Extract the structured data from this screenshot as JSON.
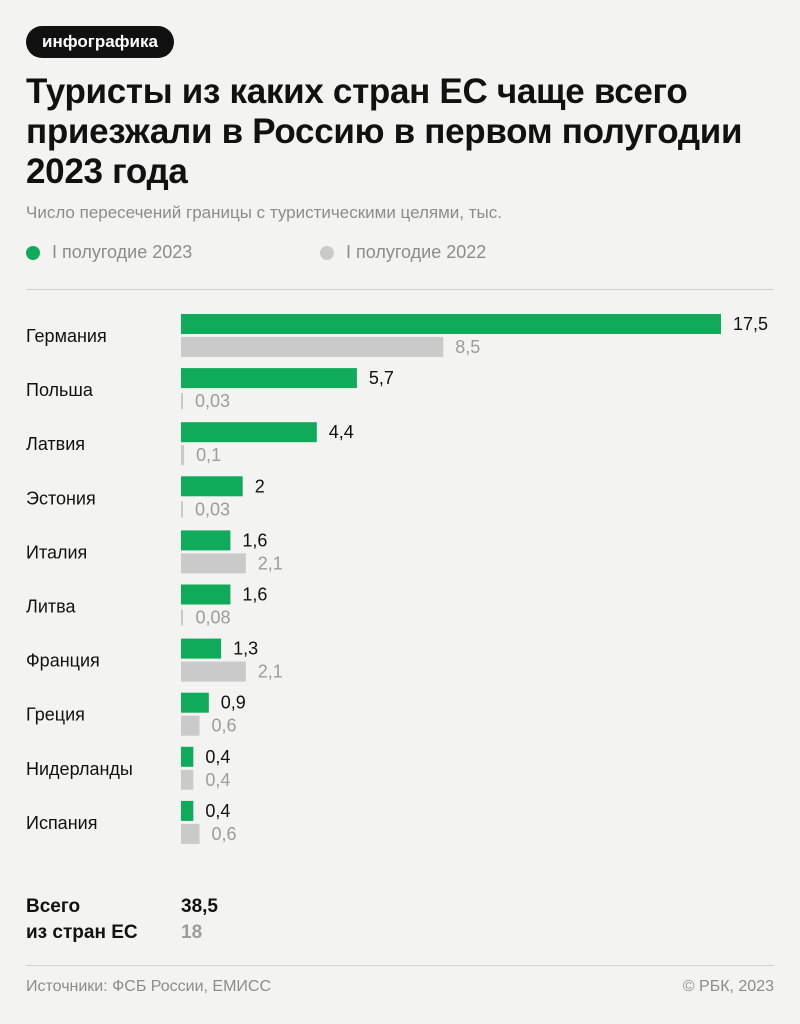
{
  "tag": "инфографика",
  "title": "Туристы из каких стран ЕС чаще всего приезжали в Россию в первом полугодии 2023 года",
  "chart_data": {
    "type": "bar",
    "orientation": "horizontal",
    "subtitle": "Число пересечений границы с туристическими целями, тыс.",
    "categories": [
      "Германия",
      "Польша",
      "Латвия",
      "Эстония",
      "Италия",
      "Литва",
      "Франция",
      "Греция",
      "Нидерланды",
      "Испания"
    ],
    "series": [
      {
        "name": "I полугодие 2023",
        "color": "#0faa5a",
        "values": [
          17.5,
          5.7,
          4.4,
          2,
          1.6,
          1.6,
          1.3,
          0.9,
          0.4,
          0.4
        ],
        "labels": [
          "17,5",
          "5,7",
          "4,4",
          "2",
          "1,6",
          "1,6",
          "1,3",
          "0,9",
          "0,4",
          "0,4"
        ]
      },
      {
        "name": "I полугодие 2022",
        "color": "#cacaca",
        "values": [
          8.5,
          0.03,
          0.1,
          0.03,
          2.1,
          0.08,
          2.1,
          0.6,
          0.4,
          0.6
        ],
        "labels": [
          "8,5",
          "0,03",
          "0,1",
          "0,03",
          "2,1",
          "0,08",
          "2,1",
          "0,6",
          "0,4",
          "0,6"
        ]
      }
    ],
    "xlim": [
      0,
      17.5
    ],
    "legend": "top-left"
  },
  "totals": {
    "label_line1": "Всего",
    "label_line2": "из стран ЕС",
    "value_2023": "38,5",
    "value_2022": "18"
  },
  "footer": {
    "source": "Источники: ФСБ России, ЕМИСС",
    "copyright": "© РБК, 2023"
  }
}
